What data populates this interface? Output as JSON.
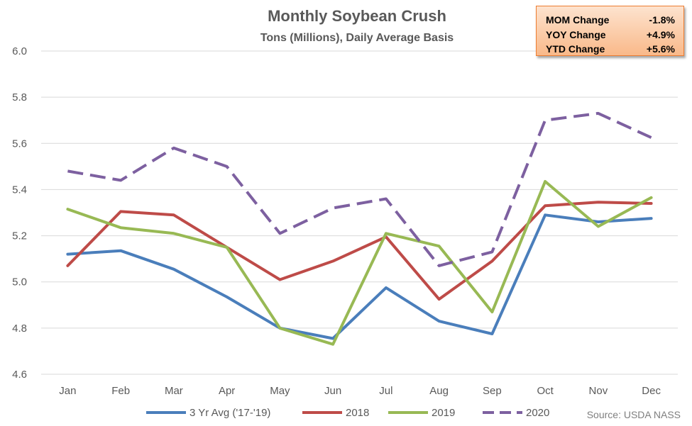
{
  "stats": [
    {
      "label": "MOM Change",
      "value": "-1.8%"
    },
    {
      "label": "YOY Change",
      "value": "+4.9%"
    },
    {
      "label": "YTD Change",
      "value": "+5.6%"
    }
  ],
  "source": "Source: USDA NASS",
  "chart_data": {
    "type": "line",
    "title": "Monthly Soybean Crush",
    "subtitle": "Tons (Millions), Daily Average Basis",
    "xlabel": "",
    "ylabel": "",
    "categories": [
      "Jan",
      "Feb",
      "Mar",
      "Apr",
      "May",
      "Jun",
      "Jul",
      "Aug",
      "Sep",
      "Oct",
      "Nov",
      "Dec"
    ],
    "ylim": [
      4.6,
      6.0
    ],
    "yticks": [
      4.6,
      4.8,
      5.0,
      5.2,
      5.4,
      5.6,
      5.8,
      6.0
    ],
    "ytick_labels": [
      "4.6",
      "4.8",
      "5.0",
      "5.2",
      "5.4",
      "5.6",
      "5.8",
      "6.0"
    ],
    "grid": true,
    "legend_position": "bottom",
    "series": [
      {
        "name": "3 Yr Avg ('17-'19)",
        "color": "#4a7ebb",
        "dashed": false,
        "values": [
          5.12,
          5.135,
          5.055,
          4.935,
          4.8,
          4.755,
          4.975,
          4.83,
          4.775,
          5.29,
          5.26,
          5.275
        ]
      },
      {
        "name": "2018",
        "color": "#be4b48",
        "dashed": false,
        "values": [
          5.07,
          5.305,
          5.29,
          5.15,
          5.01,
          5.09,
          5.195,
          4.925,
          5.09,
          5.33,
          5.345,
          5.34
        ]
      },
      {
        "name": "2019",
        "color": "#98b954",
        "dashed": false,
        "values": [
          5.315,
          5.235,
          5.21,
          5.15,
          4.8,
          4.73,
          5.21,
          5.155,
          4.87,
          5.435,
          5.24,
          5.365
        ]
      },
      {
        "name": "2020",
        "color": "#7d60a0",
        "dashed": true,
        "values": [
          5.48,
          5.44,
          5.58,
          5.5,
          5.21,
          5.32,
          5.36,
          5.07,
          5.13,
          5.7,
          5.73,
          5.625
        ]
      }
    ]
  }
}
